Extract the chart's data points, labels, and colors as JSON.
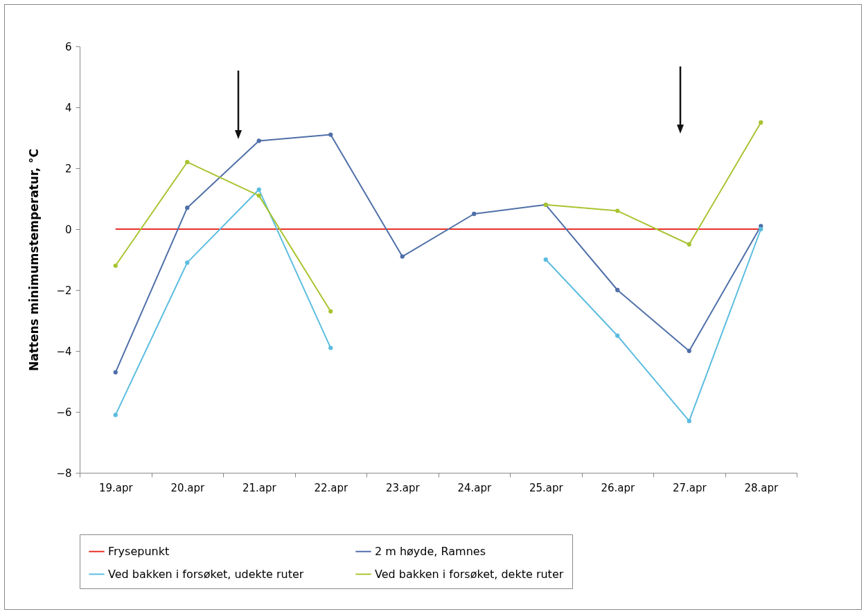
{
  "chart_data": {
    "type": "line",
    "ylabel": "Nattens minimumstemperatur, °C",
    "categories": [
      "19.apr",
      "20.apr",
      "21.apr",
      "22.apr",
      "23.apr",
      "24.apr",
      "25.apr",
      "26.apr",
      "27.apr",
      "28.apr"
    ],
    "series": [
      {
        "name": "Frysepunkt",
        "color": "#e8302a",
        "marker": "none",
        "values": [
          0,
          0,
          0,
          0,
          0,
          0,
          0,
          0,
          0,
          0
        ]
      },
      {
        "name": "2 m høyde, Ramnes",
        "color": "#4f6fa8",
        "values": [
          -4.7,
          0.7,
          2.9,
          3.1,
          -0.9,
          0.5,
          0.8,
          -2.0,
          -4.0,
          0.1
        ]
      },
      {
        "name": "Ved bakken i forsøket, udekte ruter",
        "color": "#5bbde0",
        "values": [
          -6.1,
          -1.1,
          1.3,
          -3.9,
          null,
          null,
          -1.0,
          -3.5,
          -6.3,
          0.0
        ]
      },
      {
        "name": "Ved bakken i forsøket, dekte ruter",
        "color": "#a8c431",
        "values": [
          -1.2,
          2.2,
          1.1,
          -2.7,
          null,
          null,
          0.8,
          0.6,
          -0.5,
          3.5
        ]
      }
    ],
    "ylim": [
      -8,
      6
    ],
    "yticks": [
      -8,
      -6,
      -4,
      -2,
      0,
      2,
      4,
      6
    ],
    "grid": false,
    "legend": "bottom",
    "marker": "circle",
    "line_style": "solid"
  }
}
